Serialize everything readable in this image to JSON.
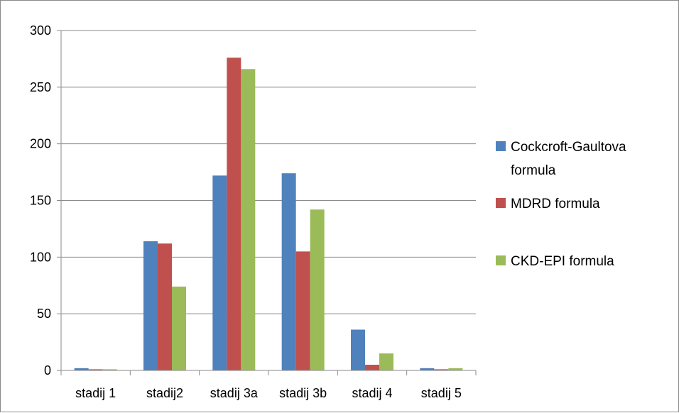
{
  "chart_data": {
    "type": "bar",
    "categories": [
      "stadij 1",
      "stadij2",
      "stadij 3a",
      "stadij 3b",
      "stadij 4",
      "stadij 5"
    ],
    "series": [
      {
        "name": "Cockcroft-Gaultova formula",
        "name_lines": [
          "Cockcroft-Gaultova",
          "formula"
        ],
        "color": "#4F81BD",
        "values": [
          2,
          114,
          172,
          174,
          36,
          2
        ]
      },
      {
        "name": "MDRD formula",
        "name_lines": [
          "MDRD formula"
        ],
        "color": "#C0504D",
        "values": [
          1,
          112,
          276,
          105,
          5,
          1
        ]
      },
      {
        "name": "CKD-EPI formula",
        "name_lines": [
          "CKD-EPI formula"
        ],
        "color": "#9BBB59",
        "values": [
          1,
          74,
          266,
          142,
          15,
          2
        ]
      }
    ],
    "ylim": [
      0,
      300
    ],
    "yticks": [
      0,
      50,
      100,
      150,
      200,
      250,
      300
    ],
    "grid": true,
    "legend": "right"
  }
}
